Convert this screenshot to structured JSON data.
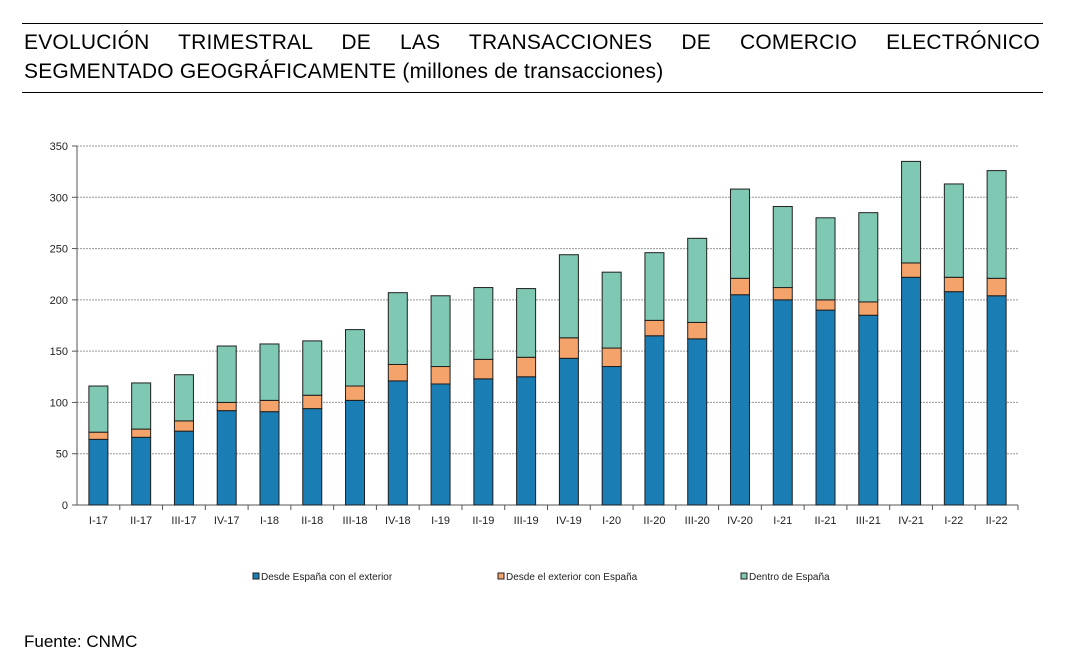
{
  "header": {
    "title_line1": "EVOLUCIÓN TRIMESTRAL DE LAS TRANSACCIONES DE COMERCIO ELECTRÓNICO",
    "title_line2_main": "SEGMENTADO GEOGRÁFICAMENTE",
    "title_line2_units": "(millones de transacciones)"
  },
  "footer": {
    "source": "Fuente: CNMC"
  },
  "chart_data": {
    "type": "bar",
    "stacked": true,
    "title": "EVOLUCIÓN TRIMESTRAL DE LAS TRANSACCIONES DE COMERCIO ELECTRÓNICO SEGMENTADO GEOGRÁFICAMENTE (millones de transacciones)",
    "categories": [
      "I-17",
      "II-17",
      "III-17",
      "IV-17",
      "I-18",
      "II-18",
      "III-18",
      "IV-18",
      "I-19",
      "II-19",
      "III-19",
      "IV-19",
      "I-20",
      "II-20",
      "III-20",
      "IV-20",
      "I-21",
      "II-21",
      "III-21",
      "IV-21",
      "I-22",
      "II-22"
    ],
    "series": [
      {
        "name": "Desde España con el exterior",
        "color": "#1a7db4",
        "values": [
          64,
          66,
          72,
          92,
          91,
          94,
          102,
          121,
          118,
          123,
          125,
          143,
          135,
          165,
          162,
          205,
          200,
          190,
          185,
          222,
          208,
          204
        ]
      },
      {
        "name": "Desde el exterior con España",
        "color": "#f4a46a",
        "values": [
          7,
          8,
          10,
          8,
          11,
          13,
          14,
          16,
          17,
          19,
          19,
          20,
          18,
          15,
          16,
          16,
          12,
          10,
          13,
          14,
          14,
          17
        ]
      },
      {
        "name": "Dentro de España",
        "color": "#7fc8b4",
        "values": [
          45,
          45,
          45,
          55,
          55,
          53,
          55,
          70,
          69,
          70,
          67,
          81,
          74,
          66,
          82,
          87,
          79,
          80,
          87,
          99,
          91,
          105
        ]
      }
    ],
    "yticks": [
      0,
      50,
      100,
      150,
      200,
      250,
      300,
      350
    ],
    "ylim": [
      0,
      350
    ],
    "grid": true,
    "legend_position": "bottom"
  }
}
